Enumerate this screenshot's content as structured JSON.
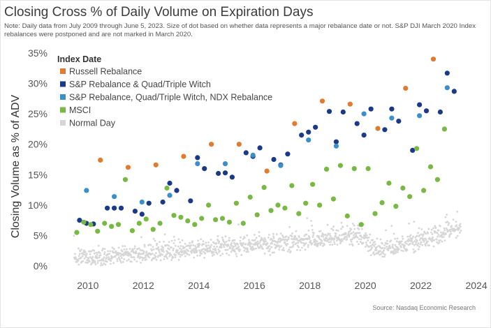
{
  "title": "Closing Cross % of Daily Volume on Expiration Days",
  "note": "Note: Daily data from July 2009 through June 5, 2023. Size of dot based on whether data represents a major rebalance date or not. S&P DJI March 2020 Index rebalances were postponed and are not marked in March 2020.",
  "source": "Source: Nasdaq Economic Research",
  "chart_data": {
    "type": "scatter",
    "title": "Closing Cross % of Daily Volume on Expiration Days",
    "xlabel": "",
    "ylabel": "Closing Volume as % of ADV",
    "xlim": [
      2009.3,
      2024.2
    ],
    "ylim": [
      0,
      35
    ],
    "x_ticks": [
      "2010",
      "2012",
      "2014",
      "2016",
      "2018",
      "2020",
      "2022",
      "2024"
    ],
    "y_ticks": [
      "0%",
      "5%",
      "10%",
      "15%",
      "20%",
      "25%",
      "30%",
      "35%"
    ],
    "grid": false,
    "legend_title": "Index Date",
    "legend_position": "top-left",
    "series": [
      {
        "name": "Russell Rebalance",
        "color": "#e07b2f",
        "points": [
          [
            2010.45,
            17.4
          ],
          [
            2011.45,
            16.2
          ],
          [
            2012.45,
            16.6
          ],
          [
            2013.45,
            18.0
          ],
          [
            2014.45,
            20.0
          ],
          [
            2015.45,
            20.0
          ],
          [
            2016.45,
            15.6
          ],
          [
            2017.45,
            23.4
          ],
          [
            2018.45,
            27.1
          ],
          [
            2019.45,
            26.6
          ],
          [
            2020.45,
            22.6
          ],
          [
            2021.45,
            29.2
          ],
          [
            2022.45,
            34.0
          ]
        ]
      },
      {
        "name": "S&P Rebalance & Quad/Triple Witch",
        "color": "#1a3a87",
        "points": [
          [
            2009.7,
            7.5
          ],
          [
            2009.95,
            7.0
          ],
          [
            2010.2,
            6.9
          ],
          [
            2010.7,
            9.5
          ],
          [
            2010.95,
            9.5
          ],
          [
            2011.2,
            9.5
          ],
          [
            2011.7,
            9.0
          ],
          [
            2011.95,
            8.5
          ],
          [
            2012.2,
            10.3
          ],
          [
            2012.7,
            10.5
          ],
          [
            2012.95,
            13.6
          ],
          [
            2013.2,
            12.4
          ],
          [
            2013.7,
            10.7
          ],
          [
            2013.95,
            17.8
          ],
          [
            2014.2,
            16.0
          ],
          [
            2014.7,
            15.2
          ],
          [
            2014.95,
            15.3
          ],
          [
            2015.2,
            14.6
          ],
          [
            2015.7,
            18.6
          ],
          [
            2015.95,
            18.0
          ],
          [
            2016.2,
            19.4
          ],
          [
            2016.7,
            17.5
          ],
          [
            2016.95,
            16.6
          ],
          [
            2017.2,
            18.4
          ],
          [
            2017.7,
            21.5
          ],
          [
            2017.95,
            22.0
          ],
          [
            2018.2,
            22.8
          ],
          [
            2018.7,
            25.4
          ],
          [
            2018.95,
            20.4
          ],
          [
            2019.2,
            25.3
          ],
          [
            2019.7,
            23.4
          ],
          [
            2019.95,
            21.5
          ],
          [
            2020.2,
            25.8
          ],
          [
            2020.7,
            22.4
          ],
          [
            2020.95,
            25.8
          ],
          [
            2021.2,
            23.8
          ],
          [
            2021.7,
            19.0
          ],
          [
            2021.95,
            26.5
          ],
          [
            2022.2,
            25.5
          ],
          [
            2022.7,
            25.3
          ],
          [
            2022.95,
            31.7
          ],
          [
            2023.2,
            28.7
          ]
        ]
      },
      {
        "name": "S&P Rebalance, Quad/Triple Witch, NDX Rebalance",
        "color": "#3a8fc9",
        "points": [
          [
            2009.95,
            12.4
          ],
          [
            2010.95,
            11.4
          ],
          [
            2011.95,
            10.5
          ],
          [
            2012.95,
            11.6
          ],
          [
            2013.95,
            16.8
          ],
          [
            2014.95,
            16.8
          ],
          [
            2015.95,
            18.2
          ],
          [
            2016.95,
            16.5
          ],
          [
            2017.95,
            20.7
          ],
          [
            2018.95,
            19.7
          ],
          [
            2019.95,
            25.0
          ],
          [
            2020.95,
            24.3
          ],
          [
            2021.95,
            24.7
          ],
          [
            2022.95,
            29.3
          ]
        ]
      },
      {
        "name": "MSCI",
        "color": "#78b843",
        "points": [
          [
            2009.6,
            5.5
          ],
          [
            2009.85,
            7.2
          ],
          [
            2010.1,
            6.8
          ],
          [
            2010.35,
            5.7
          ],
          [
            2010.6,
            7.0
          ],
          [
            2010.85,
            6.5
          ],
          [
            2011.1,
            6.8
          ],
          [
            2011.35,
            14.2
          ],
          [
            2011.6,
            5.8
          ],
          [
            2011.85,
            7.0
          ],
          [
            2012.1,
            7.7
          ],
          [
            2012.35,
            6.0
          ],
          [
            2012.6,
            7.0
          ],
          [
            2012.85,
            12.8
          ],
          [
            2013.1,
            8.3
          ],
          [
            2013.35,
            8.0
          ],
          [
            2013.6,
            7.4
          ],
          [
            2013.85,
            6.8
          ],
          [
            2014.1,
            7.8
          ],
          [
            2014.35,
            10.0
          ],
          [
            2014.6,
            7.6
          ],
          [
            2014.85,
            7.8
          ],
          [
            2015.1,
            7.2
          ],
          [
            2015.35,
            10.3
          ],
          [
            2015.6,
            7.0
          ],
          [
            2015.85,
            11.3
          ],
          [
            2016.1,
            8.4
          ],
          [
            2016.35,
            12.9
          ],
          [
            2016.6,
            9.1
          ],
          [
            2016.85,
            10.0
          ],
          [
            2017.1,
            9.5
          ],
          [
            2017.35,
            13.2
          ],
          [
            2017.6,
            8.6
          ],
          [
            2017.85,
            10.3
          ],
          [
            2018.1,
            13.4
          ],
          [
            2018.35,
            10.0
          ],
          [
            2018.6,
            15.9
          ],
          [
            2018.85,
            11.0
          ],
          [
            2019.1,
            16.5
          ],
          [
            2019.35,
            8.2
          ],
          [
            2019.6,
            16.0
          ],
          [
            2019.85,
            6.8
          ],
          [
            2020.1,
            16.0
          ],
          [
            2020.35,
            8.6
          ],
          [
            2020.6,
            10.4
          ],
          [
            2020.85,
            13.6
          ],
          [
            2021.1,
            9.8
          ],
          [
            2021.35,
            12.8
          ],
          [
            2021.6,
            11.4
          ],
          [
            2021.85,
            19.3
          ],
          [
            2022.1,
            12.4
          ],
          [
            2022.35,
            16.3
          ],
          [
            2022.6,
            14.2
          ],
          [
            2022.85,
            22.5
          ]
        ]
      }
    ],
    "normal_day": {
      "name": "Normal Day",
      "color": "#d6d6d6",
      "trend": [
        [
          2009.5,
          1.3
        ],
        [
          2011.0,
          1.8
        ],
        [
          2012.5,
          2.2
        ],
        [
          2014.0,
          2.8
        ],
        [
          2015.5,
          3.2
        ],
        [
          2017.0,
          3.8
        ],
        [
          2018.5,
          4.6
        ],
        [
          2019.8,
          5.2
        ],
        [
          2020.2,
          3.2
        ],
        [
          2020.5,
          2.5
        ],
        [
          2021.0,
          3.0
        ],
        [
          2022.0,
          4.2
        ],
        [
          2023.0,
          5.6
        ],
        [
          2023.45,
          5.8
        ]
      ],
      "spread": 1.6
    }
  }
}
